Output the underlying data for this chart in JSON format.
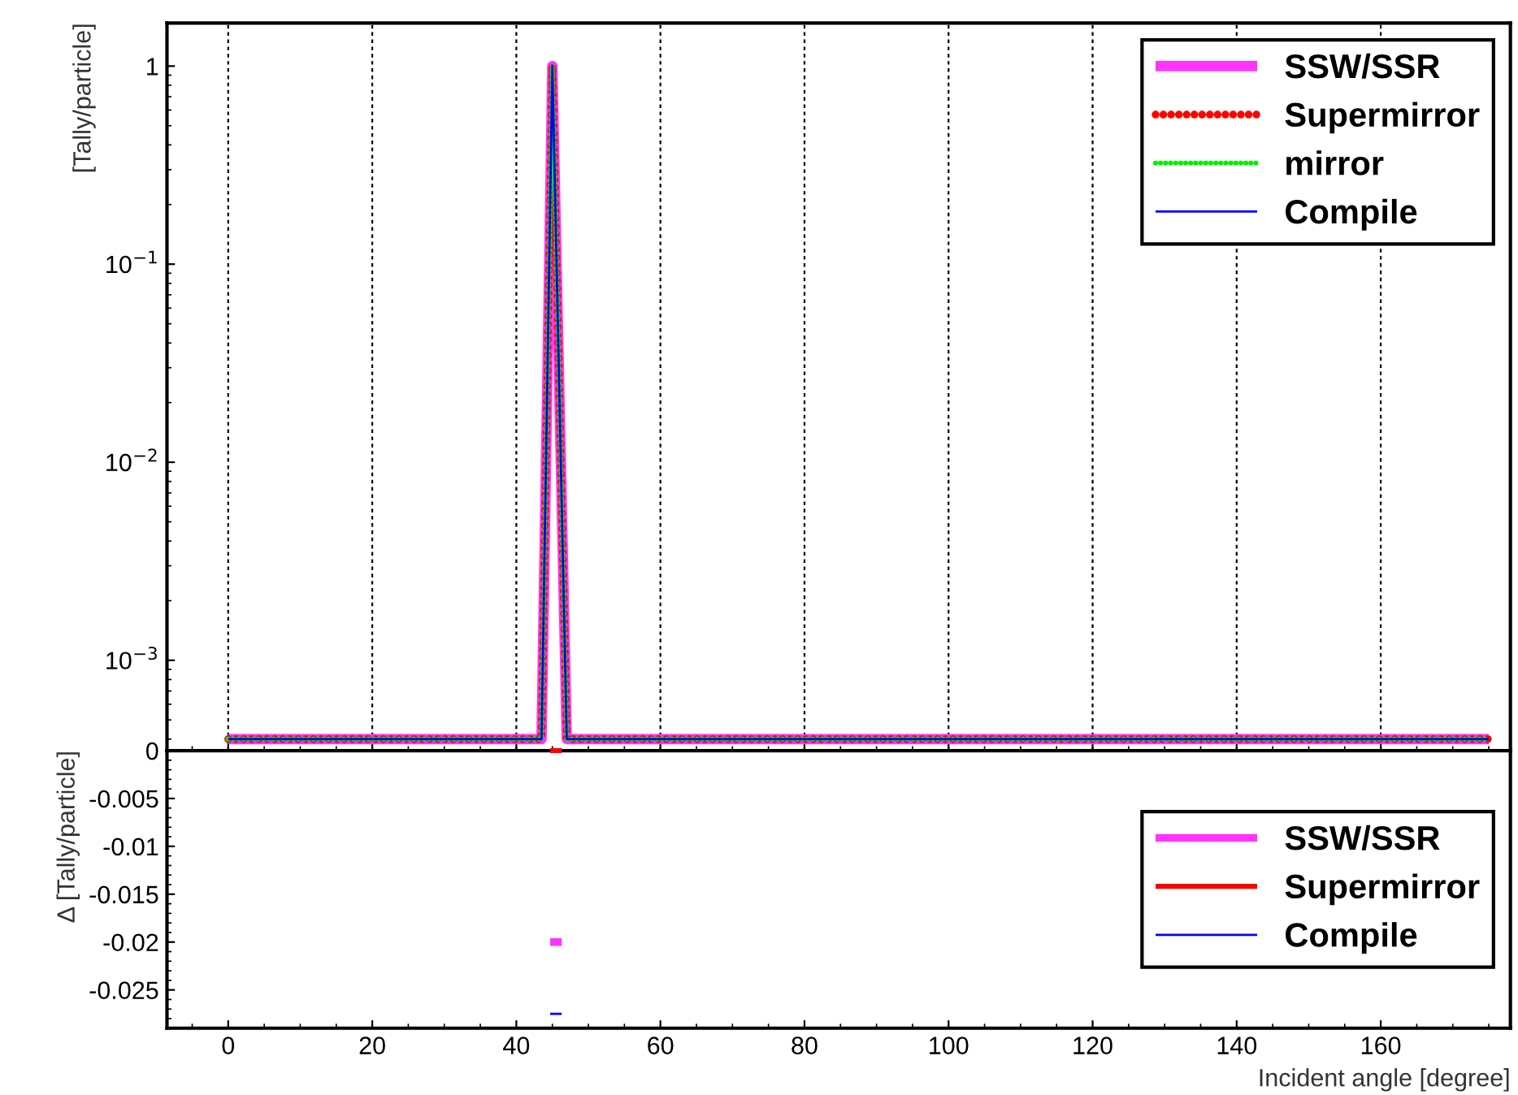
{
  "chart_data": [
    {
      "type": "line",
      "ylabel": "[Tally/particle]",
      "log": "y",
      "grid": "x",
      "legend": "top right",
      "tick_labels": "y",
      "xlim": [
        -8.5,
        178
      ],
      "xticks": [
        0,
        20,
        40,
        60,
        80,
        100,
        120,
        140,
        160
      ],
      "ylim": [
        0.00035,
        1.65
      ],
      "yticks": [
        {
          "value": 0.001,
          "label": "10$^{−3}$"
        },
        {
          "value": 0.01,
          "label": "10$^{−2}$"
        },
        {
          "value": 0.1,
          "label": "10$^{−1}$"
        },
        1
      ],
      "series": [
        {
          "name": "SSW/SSR",
          "color": "#ff33ff",
          "line_style": "solid",
          "x": [
            0,
            43.5,
            45,
            47,
            175
          ],
          "values": [
            0.0004,
            0.0004,
            1,
            0.0004,
            0.0004
          ]
        },
        {
          "name": "Supermirror",
          "color": "#ff0000",
          "line_style": "dotted",
          "x": [
            0,
            43.5,
            45,
            47,
            175
          ],
          "values": [
            0.0004,
            0.0004,
            1,
            0.0004,
            0.0004
          ]
        },
        {
          "name": "mirror",
          "color": "#00ee00",
          "line_style": "dotted",
          "x": [
            0,
            43.5,
            45,
            47,
            175
          ],
          "values": [
            0.0004,
            0.0004,
            1,
            0.0004,
            0.0004
          ]
        },
        {
          "name": "Compile",
          "color": "#0000ff",
          "line_style": "solid",
          "x": [
            0,
            43.5,
            45,
            47,
            175
          ],
          "values": [
            0.0004,
            0.0004,
            1,
            0.0004,
            0.0004
          ]
        }
      ]
    },
    {
      "type": "line",
      "xlabel": "Incident angle [degree]",
      "ylabel": "Δ [Tally/particle]",
      "legend": "right",
      "xlim": [
        -8.5,
        178
      ],
      "xticks": [
        0,
        20,
        40,
        60,
        80,
        100,
        120,
        140,
        160
      ],
      "ylim": [
        -0.029,
        0
      ],
      "yticks": [
        -0.025,
        -0.02,
        -0.015,
        -0.01,
        -0.005,
        0
      ],
      "series": [
        {
          "name": "SSW/SSR",
          "color": "#ff33ff",
          "line_style": "solid",
          "x": [
            44.7,
            46.3
          ],
          "values": [
            -0.02,
            -0.02
          ]
        },
        {
          "name": "Supermirror",
          "color": "#ff0000",
          "line_style": "solid",
          "x": [
            44.7,
            46.3
          ],
          "values": [
            0,
            0
          ]
        },
        {
          "name": "Compile",
          "color": "#0000ff",
          "line_style": "solid",
          "x": [
            44.7,
            46.3
          ],
          "values": [
            -0.0275,
            -0.0275
          ]
        }
      ]
    }
  ]
}
